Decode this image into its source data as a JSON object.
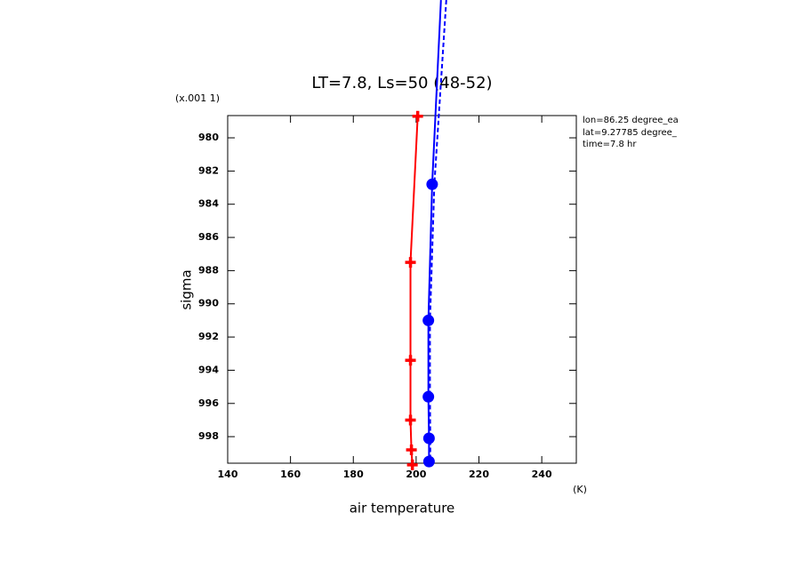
{
  "chart_data": {
    "type": "line",
    "title": "LT=7.8, Ls=50 (48-52)",
    "xlabel": "air temperature",
    "ylabel": "sigma",
    "y_multiplier": "(x.001 1)",
    "x_unit": "(K)",
    "annotations": [
      "lon=86.25 degree_ea",
      "lat=9.27785 degree_",
      "time=7.8 hr"
    ],
    "xlim": [
      140,
      251
    ],
    "xticks": [
      140,
      160,
      180,
      200,
      220,
      240
    ],
    "ylim": [
      999.6,
      978.66
    ],
    "yticks": [
      980,
      982,
      984,
      986,
      988,
      990,
      992,
      994,
      996,
      998
    ],
    "series": [
      {
        "color": "#ff0000",
        "marker": "cross",
        "dash": false,
        "x": [
          200.5,
          198.2,
          198.2,
          198.2,
          198.5,
          198.8
        ],
        "y": [
          978.7,
          987.5,
          993.4,
          997.0,
          998.8,
          999.7
        ]
      },
      {
        "color": "#0000ff",
        "marker": "dot",
        "dash": false,
        "x": [
          207.9,
          205.1,
          203.9,
          203.9,
          204.1,
          204.1
        ],
        "y": [
          971.7,
          982.8,
          991.0,
          995.6,
          998.1,
          999.5
        ]
      },
      {
        "color": "#0000ff",
        "marker": "none",
        "dash": true,
        "x": [
          209.6,
          205.8,
          204.4,
          204.4,
          204.5,
          204.5
        ],
        "y": [
          971.7,
          982.8,
          991.0,
          995.6,
          998.1,
          999.5
        ]
      }
    ]
  }
}
